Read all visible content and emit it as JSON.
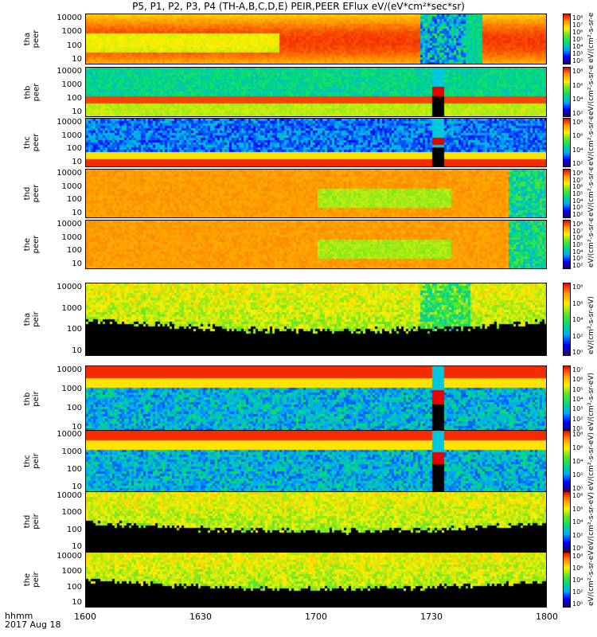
{
  "title": "P5, P1, P2, P3, P4 (TH-A,B,C,D,E) PEIR,PEER EFlux eV/(eV*cm²*sec*sr)",
  "footer": {
    "line1": "hhmm",
    "line2": "2017 Aug 18"
  },
  "chart_data": {
    "type": "heatmap",
    "title": "P5, P1, P2, P3, P4 (TH-A,B,C,D,E) PEIR,PEER EFlux eV/(eV*cm²*sec*sr)",
    "x_tick_labels": [
      "1600",
      "1630",
      "1700",
      "1730",
      "1800"
    ],
    "x_ticks_minutes": [
      0,
      30,
      60,
      90,
      120
    ],
    "xlim": [
      "1600",
      "1800"
    ],
    "y_tick_labels": [
      "10000",
      "1000",
      "100",
      "10"
    ],
    "ylim_ev": [
      5,
      30000
    ],
    "y_scale": "log",
    "colorbar_unit": "eV/(cm²-s-sr-eV)",
    "panels": [
      {
        "probe": "tha",
        "species": "peer",
        "cb_labels": [
          "10⁸",
          "10⁷",
          "10⁶",
          "10⁵",
          "10⁴",
          "10³",
          "10²"
        ],
        "gaps": []
      },
      {
        "probe": "thb",
        "species": "peer",
        "cb_labels": [
          "10⁸",
          "10⁶",
          "10⁴",
          "10²"
        ],
        "gaps": [
          [
            90,
            93
          ]
        ]
      },
      {
        "probe": "thc",
        "species": "peer",
        "cb_labels": [
          "10⁸",
          "10⁶",
          "10⁴",
          "10²"
        ],
        "gaps": [
          [
            90,
            93
          ]
        ]
      },
      {
        "probe": "thd",
        "species": "peer",
        "cb_labels": [
          "10⁸",
          "10⁷",
          "10⁶",
          "10⁵",
          "10⁴",
          "10³",
          "10²"
        ],
        "gaps": []
      },
      {
        "probe": "the",
        "species": "peer",
        "cb_labels": [
          "10⁸",
          "10⁷",
          "10⁶",
          "10⁵",
          "10⁴",
          "10³",
          "10²"
        ],
        "gaps": []
      },
      {
        "probe": "tha",
        "species": "peir",
        "cb_labels": [
          "10⁸",
          "10⁶",
          "10⁴",
          "10²",
          "10⁰"
        ],
        "gaps": []
      },
      {
        "probe": "thb",
        "species": "peir",
        "cb_labels": [
          "10⁷",
          "10⁶",
          "10⁵",
          "10⁴",
          "10³",
          "10²",
          "10¹"
        ],
        "gaps": [
          [
            90,
            93
          ]
        ]
      },
      {
        "probe": "thc",
        "species": "peir",
        "cb_labels": [
          "10⁸",
          "10⁶",
          "10⁴",
          "10²",
          "10⁰"
        ],
        "gaps": [
          [
            90,
            93
          ]
        ]
      },
      {
        "probe": "thd",
        "species": "peir",
        "cb_labels": [
          "10⁸",
          "10⁶",
          "10⁴",
          "10²",
          "10⁰"
        ],
        "gaps": []
      },
      {
        "probe": "the",
        "species": "peir",
        "cb_labels": [
          "10⁸",
          "10⁶",
          "10⁴",
          "10²",
          "10⁰"
        ],
        "gaps": []
      }
    ]
  }
}
